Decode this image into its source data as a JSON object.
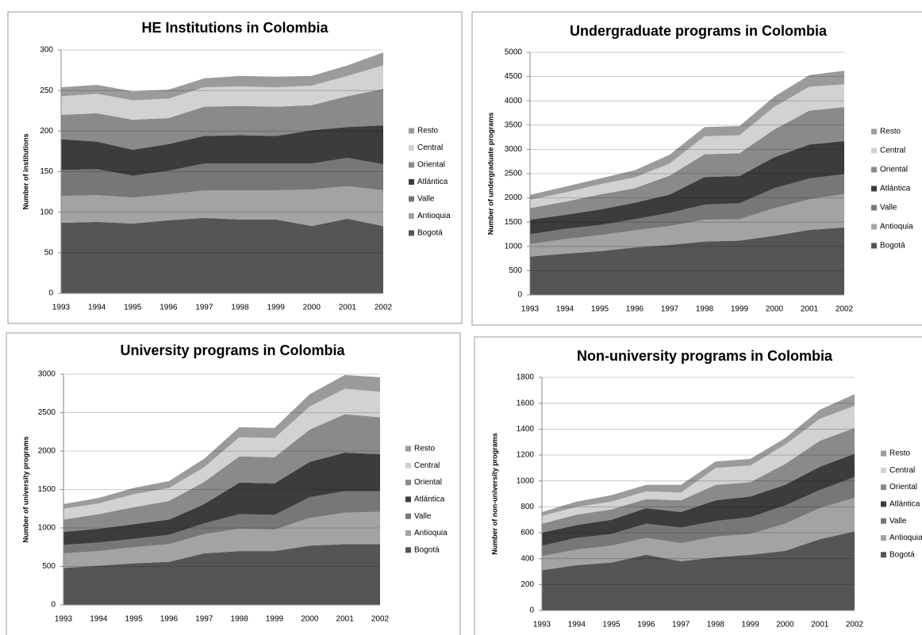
{
  "chart_data": [
    {
      "type": "area",
      "stacked": true,
      "title": "HE Institutions in Colombia",
      "y_label": "Number of institutions",
      "grid": true,
      "legend": "right",
      "categories": [
        "1993",
        "1994",
        "1995",
        "1996",
        "1997",
        "1998",
        "1999",
        "2000",
        "2001",
        "2002"
      ],
      "ylim": [
        0,
        300
      ],
      "yticks": [
        0,
        50,
        100,
        150,
        200,
        250,
        300
      ],
      "series": [
        {
          "name": "Bogotá",
          "color": "#555555",
          "values": [
            87,
            88,
            86,
            90,
            93,
            91,
            91,
            83,
            92,
            83
          ]
        },
        {
          "name": "Antioquia",
          "color": "#a3a3a3",
          "values": [
            33,
            33,
            32,
            32,
            34,
            36,
            36,
            45,
            40,
            44
          ]
        },
        {
          "name": "Valle",
          "color": "#777777",
          "values": [
            32,
            32,
            27,
            29,
            33,
            33,
            33,
            32,
            35,
            32
          ]
        },
        {
          "name": "Atlántica",
          "color": "#3c3c3c",
          "values": [
            38,
            34,
            32,
            33,
            34,
            35,
            34,
            41,
            38,
            48
          ]
        },
        {
          "name": "Oriental",
          "color": "#8a8a8a",
          "values": [
            30,
            35,
            37,
            32,
            36,
            36,
            36,
            31,
            38,
            45
          ]
        },
        {
          "name": "Central",
          "color": "#d2d2d2",
          "values": [
            23,
            24,
            24,
            24,
            24,
            24,
            24,
            24,
            25,
            29
          ]
        },
        {
          "name": "Resto",
          "color": "#9b9b9b",
          "values": [
            11,
            11,
            11,
            11,
            11,
            13,
            13,
            12,
            13,
            16
          ]
        }
      ]
    },
    {
      "type": "area",
      "stacked": true,
      "title": "Undergraduate programs in Colombia",
      "y_label": "Number of undergraduate programs",
      "grid": true,
      "legend": "right",
      "categories": [
        "1993",
        "1994",
        "1995",
        "1996",
        "1997",
        "1998",
        "1999",
        "2000",
        "2001",
        "2002"
      ],
      "ylim": [
        0,
        5000
      ],
      "yticks": [
        0,
        500,
        1000,
        1500,
        2000,
        2500,
        3000,
        3500,
        4000,
        4500,
        5000
      ],
      "series": [
        {
          "name": "Bogotá",
          "color": "#555555",
          "values": [
            790,
            850,
            900,
            980,
            1030,
            1100,
            1120,
            1220,
            1340,
            1390
          ]
        },
        {
          "name": "Antioquia",
          "color": "#a3a3a3",
          "values": [
            260,
            300,
            330,
            350,
            390,
            450,
            440,
            570,
            630,
            690
          ]
        },
        {
          "name": "Valle",
          "color": "#777777",
          "values": [
            200,
            210,
            210,
            230,
            270,
            310,
            330,
            410,
            430,
            410
          ]
        },
        {
          "name": "Atlántica",
          "color": "#3c3c3c",
          "values": [
            300,
            290,
            320,
            340,
            380,
            570,
            560,
            640,
            700,
            680
          ]
        },
        {
          "name": "Oriental",
          "color": "#8a8a8a",
          "values": [
            240,
            270,
            310,
            300,
            390,
            470,
            470,
            570,
            700,
            700
          ]
        },
        {
          "name": "Central",
          "color": "#d2d2d2",
          "values": [
            170,
            190,
            210,
            220,
            250,
            370,
            370,
            470,
            490,
            470
          ]
        },
        {
          "name": "Resto",
          "color": "#9b9b9b",
          "values": [
            100,
            120,
            120,
            150,
            180,
            190,
            190,
            210,
            240,
            280
          ]
        }
      ]
    },
    {
      "type": "area",
      "stacked": true,
      "title": "University programs in Colombia",
      "y_label": "Number of university programs",
      "grid": true,
      "legend": "right",
      "categories": [
        "1993",
        "1994",
        "1995",
        "1996",
        "1997",
        "1998",
        "1999",
        "2000",
        "2001",
        "2002"
      ],
      "ylim": [
        0,
        3000
      ],
      "yticks": [
        0,
        500,
        1000,
        1500,
        2000,
        2500,
        3000
      ],
      "series": [
        {
          "name": "Bogotá",
          "color": "#555555",
          "values": [
            480,
            510,
            540,
            560,
            670,
            700,
            700,
            770,
            790,
            790
          ]
        },
        {
          "name": "Antioquia",
          "color": "#a3a3a3",
          "values": [
            190,
            190,
            210,
            230,
            250,
            290,
            280,
            360,
            410,
            420
          ]
        },
        {
          "name": "Valle",
          "color": "#777777",
          "values": [
            110,
            110,
            110,
            120,
            140,
            190,
            190,
            270,
            280,
            270
          ]
        },
        {
          "name": "Atlántica",
          "color": "#3c3c3c",
          "values": [
            170,
            180,
            190,
            200,
            250,
            410,
            410,
            460,
            500,
            480
          ]
        },
        {
          "name": "Oriental",
          "color": "#8a8a8a",
          "values": [
            160,
            190,
            220,
            240,
            290,
            340,
            340,
            420,
            500,
            480
          ]
        },
        {
          "name": "Central",
          "color": "#d2d2d2",
          "values": [
            140,
            140,
            170,
            170,
            190,
            250,
            250,
            300,
            330,
            330
          ]
        },
        {
          "name": "Resto",
          "color": "#9b9b9b",
          "values": [
            60,
            70,
            80,
            90,
            110,
            130,
            130,
            160,
            180,
            190
          ]
        }
      ]
    },
    {
      "type": "area",
      "stacked": true,
      "title": "Non-university programs in Colombia",
      "y_label": "Number of non-university programs",
      "grid": true,
      "legend": "right",
      "categories": [
        "1993",
        "1994",
        "1995",
        "1996",
        "1997",
        "1998",
        "1999",
        "2000",
        "2001",
        "2002"
      ],
      "ylim": [
        0,
        1800
      ],
      "yticks": [
        0,
        200,
        400,
        600,
        800,
        1000,
        1200,
        1400,
        1600,
        1800
      ],
      "series": [
        {
          "name": "Bogotá",
          "color": "#555555",
          "values": [
            310,
            350,
            370,
            430,
            380,
            410,
            430,
            460,
            550,
            610
          ]
        },
        {
          "name": "Antioquia",
          "color": "#a3a3a3",
          "values": [
            110,
            120,
            130,
            130,
            140,
            160,
            160,
            210,
            240,
            260
          ]
        },
        {
          "name": "Valle",
          "color": "#777777",
          "values": [
            80,
            90,
            90,
            110,
            120,
            120,
            130,
            140,
            140,
            160
          ]
        },
        {
          "name": "Atlántica",
          "color": "#3c3c3c",
          "values": [
            100,
            100,
            110,
            120,
            120,
            160,
            160,
            160,
            180,
            180
          ]
        },
        {
          "name": "Oriental",
          "color": "#8a8a8a",
          "values": [
            70,
            80,
            80,
            70,
            90,
            120,
            110,
            160,
            200,
            200
          ]
        },
        {
          "name": "Central",
          "color": "#d2d2d2",
          "values": [
            60,
            60,
            60,
            60,
            60,
            130,
            130,
            150,
            170,
            170
          ]
        },
        {
          "name": "Resto",
          "color": "#9b9b9b",
          "values": [
            30,
            40,
            50,
            50,
            60,
            50,
            50,
            50,
            70,
            90
          ]
        }
      ]
    }
  ]
}
